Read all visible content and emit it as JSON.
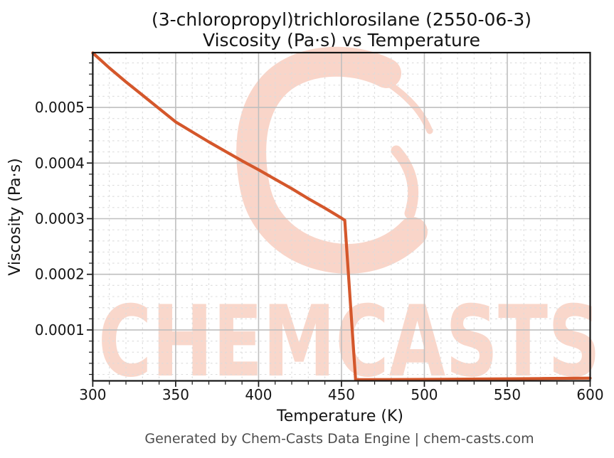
{
  "title": {
    "line1": "(3-chloropropyl)trichlorosilane (2550-06-3)",
    "line2": "Viscosity (Pa·s) vs Temperature"
  },
  "footer": "Generated by Chem-Casts Data Engine | chem-casts.com",
  "watermark": {
    "text": "CHEMCASTS"
  },
  "colors": {
    "line": "#d4572b",
    "major_grid": "#bfbfbf",
    "minor_grid": "#dcdcdc",
    "spine": "#161616",
    "tick": "#161616",
    "text": "#141414",
    "footer_text": "#4d4d4d",
    "watermark": "#f9d7cb",
    "watermark_logo": "#f9d5c9"
  },
  "chart_data": {
    "type": "line",
    "title": "(3-chloropropyl)trichlorosilane (2550-06-3) Viscosity (Pa·s) vs Temperature",
    "xlabel": "Temperature (K)",
    "ylabel": "Viscosity (Pa·s)",
    "xlim": [
      300,
      600
    ],
    "ylim": [
      8.5e-06,
      0.0005985
    ],
    "x_ticks": [
      300,
      350,
      400,
      450,
      500,
      550,
      600
    ],
    "x_tick_labels": [
      "300",
      "350",
      "400",
      "450",
      "500",
      "550",
      "600"
    ],
    "y_ticks": [
      0.0001,
      0.0002,
      0.0003,
      0.0004,
      0.0005
    ],
    "y_tick_labels": [
      "0.0001",
      "0.0002",
      "0.0003",
      "0.0004",
      "0.0005"
    ],
    "x_minor_step": 10,
    "y_minor_step": 2e-05,
    "grid": true,
    "legend_visible": false,
    "series": [
      {
        "name": "Viscosity (Pa·s)",
        "color": "#d4572b",
        "points": [
          [
            300,
            0.000598
          ],
          [
            310,
            0.000571
          ],
          [
            320,
            0.000546
          ],
          [
            330,
            0.000522
          ],
          [
            340,
            0.000498
          ],
          [
            350,
            0.000474
          ],
          [
            360,
            0.000456
          ],
          [
            370,
            0.000438
          ],
          [
            380,
            0.000421
          ],
          [
            390,
            0.000404
          ],
          [
            400,
            0.000388
          ],
          [
            410,
            0.000371
          ],
          [
            420,
            0.000354
          ],
          [
            430,
            0.000336
          ],
          [
            440,
            0.000319
          ],
          [
            450,
            0.000301
          ],
          [
            452,
            0.000297
          ],
          [
            458.5,
            1.05e-05
          ],
          [
            480,
            1.08e-05
          ],
          [
            510,
            1.13e-05
          ],
          [
            540,
            1.19e-05
          ],
          [
            570,
            1.26e-05
          ],
          [
            600,
            1.33e-05
          ]
        ]
      }
    ]
  }
}
